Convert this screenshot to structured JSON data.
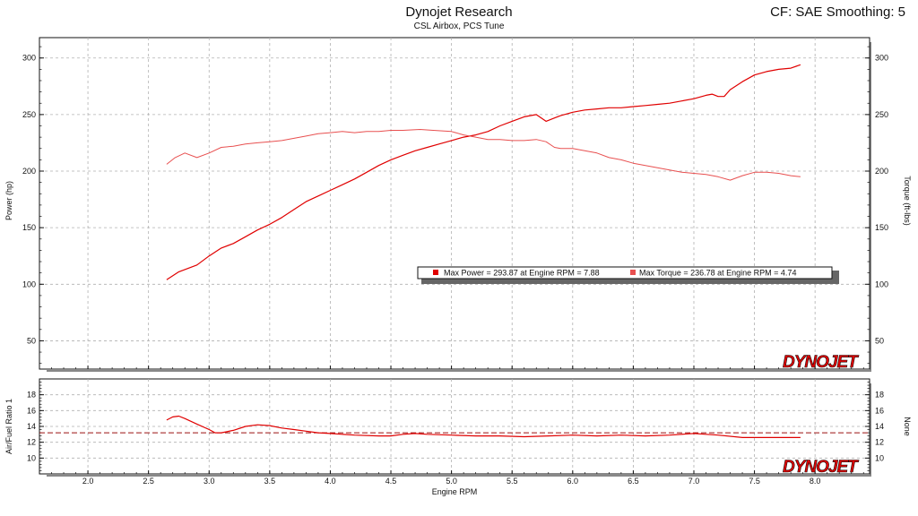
{
  "header": {
    "title": "Dynojet Research",
    "subtitle": "CSL Airbox, PCS Tune",
    "cf_text": "CF: SAE Smoothing: 5"
  },
  "logo_text": "DYNOJET",
  "colors": {
    "power": "#e00000",
    "torque": "#e85050",
    "afr": "#e00000",
    "afr_target": "#9a1010",
    "grid": "#b0b0b0"
  },
  "chart_data": [
    {
      "type": "line",
      "id": "power-torque",
      "xlim": [
        1.6,
        8.45
      ],
      "ylim": [
        25,
        318
      ],
      "xlabel": "",
      "ylabel": "Power (hp)",
      "ylabel_right": "Torque (ft-lbs)",
      "yticks": [
        50,
        100,
        150,
        200,
        250,
        300
      ],
      "grid": true,
      "legend": {
        "placement": "center-right",
        "entries": [
          "Max Power = 293.87 at Engine RPM = 7.88",
          "Max Torque = 236.78 at Engine RPM = 4.74"
        ]
      },
      "series": [
        {
          "key": "power",
          "x": [
            2.65,
            2.75,
            2.9,
            3.0,
            3.1,
            3.2,
            3.3,
            3.4,
            3.5,
            3.6,
            3.7,
            3.8,
            3.9,
            4.0,
            4.1,
            4.2,
            4.3,
            4.4,
            4.5,
            4.6,
            4.7,
            4.8,
            4.9,
            5.0,
            5.1,
            5.2,
            5.3,
            5.4,
            5.5,
            5.6,
            5.7,
            5.78,
            5.85,
            5.9,
            6.0,
            6.1,
            6.2,
            6.3,
            6.4,
            6.5,
            6.6,
            6.7,
            6.8,
            6.9,
            7.0,
            7.1,
            7.15,
            7.2,
            7.25,
            7.3,
            7.4,
            7.5,
            7.6,
            7.7,
            7.8,
            7.88
          ],
          "values": [
            104,
            111,
            117,
            125,
            132,
            136,
            142,
            148,
            153,
            159,
            166,
            173,
            178,
            183,
            188,
            193,
            199,
            205,
            210,
            214,
            218,
            221,
            224,
            227,
            230,
            232,
            235,
            240,
            244,
            248,
            250,
            244,
            247,
            249,
            252,
            254,
            255,
            256,
            256,
            257,
            258,
            259,
            260,
            262,
            264,
            267,
            268,
            266,
            266,
            272,
            279,
            285,
            288,
            290,
            291,
            294
          ]
        },
        {
          "key": "torque",
          "x": [
            2.65,
            2.72,
            2.8,
            2.9,
            3.0,
            3.1,
            3.2,
            3.3,
            3.4,
            3.5,
            3.6,
            3.7,
            3.8,
            3.9,
            4.0,
            4.1,
            4.2,
            4.3,
            4.4,
            4.5,
            4.6,
            4.74,
            4.85,
            5.0,
            5.1,
            5.2,
            5.3,
            5.4,
            5.5,
            5.6,
            5.7,
            5.78,
            5.85,
            5.9,
            6.0,
            6.1,
            6.2,
            6.3,
            6.4,
            6.5,
            6.6,
            6.7,
            6.8,
            6.9,
            7.0,
            7.1,
            7.2,
            7.3,
            7.4,
            7.5,
            7.6,
            7.7,
            7.8,
            7.88
          ],
          "values": [
            206,
            212,
            216,
            212,
            216,
            221,
            222,
            224,
            225,
            226,
            227,
            229,
            231,
            233,
            234,
            235,
            234,
            235,
            235,
            236,
            236,
            236.8,
            236,
            235,
            232,
            230,
            228,
            228,
            227,
            227,
            228,
            226,
            221,
            220,
            220,
            218,
            216,
            212,
            210,
            207,
            205,
            203,
            201,
            199,
            198,
            197,
            195,
            192,
            196,
            199,
            199,
            198,
            196,
            195
          ]
        }
      ]
    },
    {
      "type": "line",
      "id": "afr",
      "xlim": [
        1.6,
        8.45
      ],
      "ylim": [
        8,
        20
      ],
      "xlabel": "Engine RPM",
      "ylabel": "Air/Fuel Ratio 1",
      "ylabel_right": "None",
      "xticks": [
        2.0,
        2.5,
        3.0,
        3.5,
        4.0,
        4.5,
        5.0,
        5.5,
        6.0,
        6.5,
        7.0,
        7.5,
        8.0
      ],
      "xtick_labels": [
        "2.0",
        "2.5",
        "3.0",
        "3.5",
        "4.0",
        "4.5",
        "5.0",
        "5.5",
        "6.0",
        "6.5",
        "7.0",
        "7.5",
        "8.0"
      ],
      "yticks": [
        10,
        12,
        14,
        16,
        18
      ],
      "grid": true,
      "reference_line": 13.2,
      "series": [
        {
          "key": "afr",
          "x": [
            2.65,
            2.7,
            2.75,
            2.8,
            2.9,
            3.0,
            3.05,
            3.1,
            3.2,
            3.3,
            3.4,
            3.5,
            3.6,
            3.7,
            3.8,
            3.9,
            4.0,
            4.2,
            4.4,
            4.5,
            4.6,
            4.7,
            4.8,
            5.0,
            5.2,
            5.4,
            5.6,
            5.8,
            6.0,
            6.2,
            6.4,
            6.6,
            6.8,
            7.0,
            7.1,
            7.2,
            7.4,
            7.6,
            7.88
          ],
          "values": [
            14.8,
            15.2,
            15.3,
            15.0,
            14.3,
            13.6,
            13.2,
            13.2,
            13.5,
            14.0,
            14.2,
            14.1,
            13.8,
            13.6,
            13.4,
            13.2,
            13.1,
            12.9,
            12.8,
            12.8,
            13.0,
            13.1,
            13.0,
            12.9,
            12.8,
            12.8,
            12.7,
            12.8,
            12.9,
            12.8,
            12.9,
            12.8,
            12.9,
            13.1,
            13.0,
            12.9,
            12.6,
            12.6,
            12.6
          ]
        }
      ]
    }
  ]
}
